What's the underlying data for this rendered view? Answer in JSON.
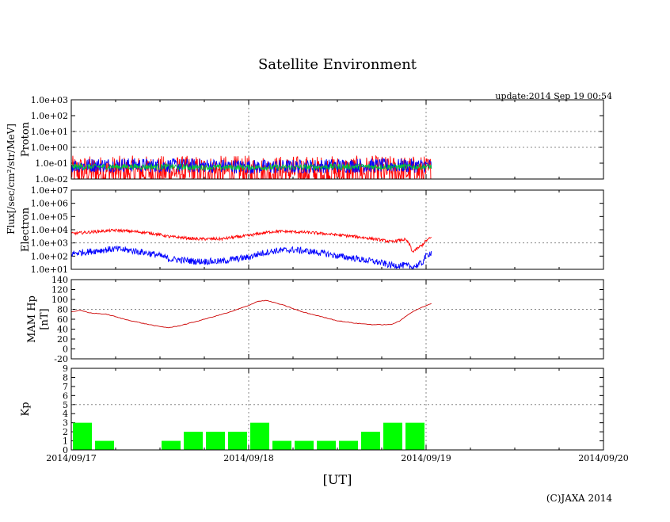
{
  "chart_data": {
    "type": "line",
    "title": "Satellite Environment",
    "update_label": "update:2014 Sep 19 00:54",
    "xlabel": "[UT]",
    "copyright": "(C)JAXA 2014",
    "x_ticks": [
      "2014/09/17",
      "2014/09/18",
      "2014/09/19",
      "2014/09/20"
    ],
    "x_range": [
      "2014/09/17",
      "2014/09/20"
    ],
    "flux_label": "Flux[/sec/cm²/str/MeV]",
    "panels": [
      {
        "id": "proton",
        "ylabel": "Proton",
        "scale": "log",
        "ylim": [
          0.01,
          1000
        ],
        "y_ticks": [
          "1.0e-02",
          "1.0e-01",
          "1.0e+00",
          "1.0e+01",
          "1.0e+02",
          "1.0e+03"
        ],
        "series": [
          {
            "color": "#ff0000",
            "x_days": [
              0,
              0.25,
              0.5,
              0.75,
              1.0,
              1.25,
              1.5,
              1.75,
              2.0,
              2.03
            ],
            "values": [
              0.03,
              0.03,
              0.03,
              0.03,
              0.03,
              0.03,
              0.03,
              0.03,
              0.03,
              0.03
            ]
          },
          {
            "color": "#0000ff",
            "x_days": [
              0,
              0.25,
              0.5,
              0.75,
              1.0,
              1.25,
              1.5,
              1.75,
              2.0,
              2.03
            ],
            "values": [
              0.07,
              0.08,
              0.07,
              0.07,
              0.06,
              0.06,
              0.07,
              0.07,
              0.07,
              0.07
            ]
          },
          {
            "color": "#00cc33",
            "x_days": [
              0,
              0.25,
              0.5,
              0.75,
              1.0,
              1.25,
              1.5,
              1.75,
              2.0,
              2.03
            ],
            "values": [
              0.06,
              0.06,
              0.06,
              0.055,
              0.055,
              0.055,
              0.06,
              0.06,
              0.06,
              0.06
            ]
          }
        ]
      },
      {
        "id": "electron",
        "ylabel": "Electron",
        "scale": "log",
        "ylim": [
          10,
          10000000
        ],
        "y_ticks": [
          "1.0e+01",
          "1.0e+02",
          "1.0e+03",
          "1.0e+04",
          "1.0e+05",
          "1.0e+06",
          "1.0e+07"
        ],
        "series": [
          {
            "color": "#ff0000",
            "x_days": [
              0,
              0.1,
              0.25,
              0.4,
              0.55,
              0.7,
              0.85,
              1.0,
              1.15,
              1.25,
              1.35,
              1.5,
              1.65,
              1.8,
              1.88,
              1.92,
              1.95,
              1.98,
              2.03
            ],
            "values": [
              5000,
              6500,
              9000,
              6500,
              3000,
              2000,
              2000,
              3500,
              7500,
              7000,
              6000,
              4000,
              2500,
              1200,
              1800,
              200,
              350,
              700,
              2500
            ]
          },
          {
            "color": "#0000ff",
            "x_days": [
              0,
              0.1,
              0.25,
              0.4,
              0.55,
              0.7,
              0.85,
              1.0,
              1.15,
              1.25,
              1.35,
              1.5,
              1.65,
              1.8,
              1.88,
              1.92,
              1.95,
              1.98,
              2.03
            ],
            "values": [
              150,
              220,
              350,
              200,
              60,
              40,
              40,
              80,
              250,
              300,
              220,
              100,
              50,
              20,
              20,
              15,
              20,
              30,
              200
            ]
          }
        ]
      },
      {
        "id": "hp",
        "ylabel": "MAM Hp",
        "ylabel2": "[nT]",
        "scale": "linear",
        "ylim": [
          -20,
          140
        ],
        "y_ticks": [
          "-20",
          "0",
          "20",
          "40",
          "60",
          "80",
          "100",
          "120",
          "140"
        ],
        "series": [
          {
            "color": "#cc0000",
            "x_days": [
              0,
              0.05,
              0.1,
              0.2,
              0.3,
              0.4,
              0.5,
              0.55,
              0.6,
              0.7,
              0.8,
              0.9,
              1.0,
              1.05,
              1.1,
              1.2,
              1.3,
              1.4,
              1.5,
              1.6,
              1.7,
              1.8,
              1.85,
              1.9,
              1.95,
              2.0,
              2.03
            ],
            "values": [
              75,
              78,
              73,
              70,
              60,
              52,
              45,
              43,
              46,
              55,
              65,
              75,
              88,
              96,
              98,
              88,
              75,
              66,
              57,
              52,
              49,
              49,
              56,
              70,
              80,
              87,
              92
            ]
          }
        ]
      },
      {
        "id": "kp",
        "ylabel": "Kp",
        "scale": "linear",
        "type": "bar",
        "ylim": [
          0,
          9
        ],
        "y_ticks": [
          "0",
          "1",
          "2",
          "3",
          "4",
          "5",
          "6",
          "7",
          "8",
          "9"
        ],
        "bar_color": "#00ff00",
        "bar_start_days": [
          0,
          0.125,
          0.25,
          0.375,
          0.5,
          0.625,
          0.75,
          0.875,
          1.0,
          1.125,
          1.25,
          1.375,
          1.5,
          1.625,
          1.75,
          1.875
        ],
        "values": [
          3,
          1,
          0,
          0,
          1,
          2,
          2,
          2,
          3,
          1,
          1,
          1,
          1,
          2,
          3,
          3
        ]
      }
    ]
  }
}
